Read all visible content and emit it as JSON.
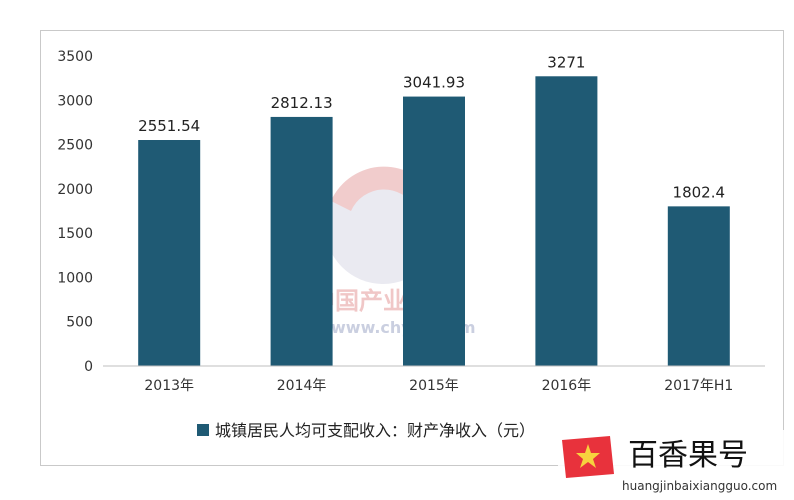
{
  "chart_data": {
    "type": "bar",
    "categories": [
      "2013年",
      "2014年",
      "2015年",
      "2016年",
      "2017年H1"
    ],
    "series": [
      {
        "name": "城镇居民人均可支配收入：财产净收入（元）",
        "values": [
          2551.54,
          2812.13,
          3041.93,
          3271,
          1802.4
        ],
        "data_labels": [
          "2551.54",
          "2812.13",
          "3041.93",
          "3271",
          "1802.4"
        ],
        "color": "#1f5a74"
      }
    ],
    "ylim": [
      0,
      3500
    ],
    "yticks": [
      0,
      500,
      1000,
      1500,
      2000,
      2500,
      3000,
      3500
    ],
    "grid": false,
    "legend_position": "bottom"
  },
  "watermark": {
    "cn_text": "中国产业信息",
    "url_text": "www.chyxx.com"
  },
  "brand": {
    "name": "百香果号",
    "url": "huangjinbaixiangguo.com",
    "badge_color": "#e8323c",
    "icon": "star-icon"
  }
}
